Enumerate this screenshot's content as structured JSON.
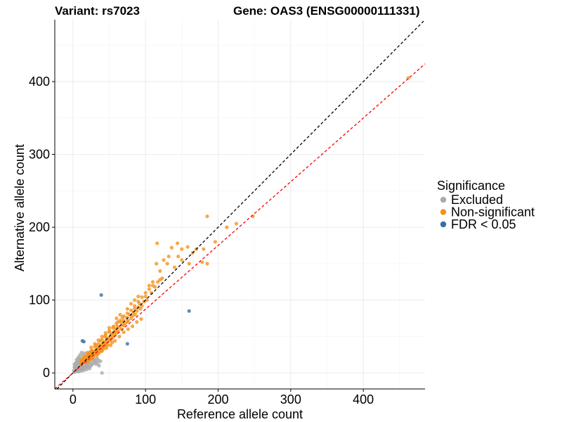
{
  "header": {
    "variant_label": "Variant: rs7023",
    "gene_label": "Gene: OAS3 (ENSG00000111331)"
  },
  "chart_data": {
    "type": "scatter",
    "xlabel": "Reference allele count",
    "ylabel": "Alternative allele count",
    "xlim": [
      -25,
      485
    ],
    "ylim": [
      -22,
      485
    ],
    "xticks": [
      0,
      100,
      200,
      300,
      400
    ],
    "yticks": [
      0,
      100,
      200,
      300,
      400
    ],
    "grid": true,
    "reference_lines": [
      {
        "name": "identity",
        "slope": 1.0,
        "intercept": 0,
        "color": "#000000",
        "style": "dashed"
      },
      {
        "name": "fit",
        "slope": 0.875,
        "intercept": 0,
        "color": "#ff0000",
        "style": "dashed"
      }
    ],
    "legend": {
      "title": "Significance",
      "position": "right",
      "items": [
        {
          "label": "Excluded",
          "color": "#aaaaaa"
        },
        {
          "label": "Non-significant",
          "color": "#f5921e"
        },
        {
          "label": "FDR < 0.05",
          "color": "#3a6ea5"
        }
      ]
    },
    "series": [
      {
        "name": "Excluded",
        "color": "#aaaaaa",
        "points": [
          [
            2,
            1
          ],
          [
            3,
            2
          ],
          [
            4,
            5
          ],
          [
            5,
            3
          ],
          [
            6,
            8
          ],
          [
            7,
            4
          ],
          [
            8,
            10
          ],
          [
            9,
            6
          ],
          [
            10,
            12
          ],
          [
            11,
            7
          ],
          [
            12,
            15
          ],
          [
            13,
            9
          ],
          [
            14,
            11
          ],
          [
            15,
            18
          ],
          [
            16,
            13
          ],
          [
            17,
            20
          ],
          [
            18,
            14
          ],
          [
            19,
            22
          ],
          [
            20,
            16
          ],
          [
            21,
            19
          ],
          [
            22,
            24
          ],
          [
            23,
            17
          ],
          [
            24,
            26
          ],
          [
            25,
            21
          ],
          [
            26,
            23
          ],
          [
            27,
            18
          ],
          [
            28,
            25
          ],
          [
            5,
            12
          ],
          [
            6,
            16
          ],
          [
            7,
            20
          ],
          [
            8,
            22
          ],
          [
            9,
            18
          ],
          [
            3,
            10
          ],
          [
            4,
            14
          ],
          [
            10,
            25
          ],
          [
            12,
            28
          ],
          [
            14,
            24
          ],
          [
            16,
            27
          ],
          [
            18,
            8
          ],
          [
            20,
            10
          ],
          [
            22,
            12
          ],
          [
            24,
            9
          ],
          [
            26,
            11
          ],
          [
            28,
            13
          ],
          [
            30,
            15
          ],
          [
            32,
            12
          ],
          [
            34,
            14
          ],
          [
            36,
            10
          ],
          [
            38,
            16
          ],
          [
            6,
            2
          ],
          [
            8,
            3
          ],
          [
            10,
            4
          ],
          [
            12,
            5
          ],
          [
            14,
            6
          ],
          [
            16,
            4
          ],
          [
            2,
            8
          ],
          [
            3,
            6
          ],
          [
            4,
            9
          ],
          [
            11,
            14
          ],
          [
            13,
            17
          ],
          [
            15,
            21
          ],
          [
            17,
            16
          ],
          [
            19,
            12
          ],
          [
            21,
            15
          ],
          [
            23,
            20
          ],
          [
            25,
            14
          ],
          [
            27,
            22
          ],
          [
            29,
            19
          ],
          [
            31,
            17
          ],
          [
            33,
            20
          ],
          [
            35,
            18
          ],
          [
            40,
            0
          ],
          [
            1,
            3
          ],
          [
            2,
            12
          ],
          [
            5,
            18
          ],
          [
            7,
            14
          ],
          [
            9,
            2
          ],
          [
            11,
            20
          ],
          [
            13,
            3
          ],
          [
            15,
            7
          ],
          [
            17,
            9
          ],
          [
            19,
            5
          ],
          [
            21,
            8
          ],
          [
            23,
            6
          ]
        ]
      },
      {
        "name": "Non-significant",
        "color": "#f5921e",
        "points": [
          [
            462,
            405
          ],
          [
            248,
            215
          ],
          [
            225,
            205
          ],
          [
            212,
            200
          ],
          [
            196,
            180
          ],
          [
            185,
            215
          ],
          [
            180,
            170
          ],
          [
            185,
            150
          ],
          [
            178,
            152
          ],
          [
            170,
            170
          ],
          [
            165,
            165
          ],
          [
            158,
            173
          ],
          [
            150,
            170
          ],
          [
            144,
            178
          ],
          [
            136,
            172
          ],
          [
            132,
            160
          ],
          [
            130,
            150
          ],
          [
            125,
            155
          ],
          [
            120,
            140
          ],
          [
            115,
            150
          ],
          [
            116,
            178
          ],
          [
            108,
            110
          ],
          [
            113,
            118
          ],
          [
            117,
            125
          ],
          [
            120,
            128
          ],
          [
            123,
            130
          ],
          [
            102,
            100
          ],
          [
            100,
            105
          ],
          [
            98,
            98
          ],
          [
            95,
            92
          ],
          [
            93,
            88
          ],
          [
            92,
            95
          ],
          [
            90,
            90
          ],
          [
            88,
            85
          ],
          [
            86,
            80
          ],
          [
            85,
            88
          ],
          [
            83,
            83
          ],
          [
            82,
            78
          ],
          [
            80,
            75
          ],
          [
            78,
            80
          ],
          [
            76,
            72
          ],
          [
            75,
            70
          ],
          [
            74,
            76
          ],
          [
            72,
            68
          ],
          [
            70,
            65
          ],
          [
            70,
            72
          ],
          [
            68,
            66
          ],
          [
            67,
            60
          ],
          [
            66,
            70
          ],
          [
            64,
            63
          ],
          [
            62,
            58
          ],
          [
            61,
            64
          ],
          [
            60,
            55
          ],
          [
            59,
            60
          ],
          [
            58,
            52
          ],
          [
            57,
            57
          ],
          [
            56,
            50
          ],
          [
            55,
            55
          ],
          [
            54,
            48
          ],
          [
            53,
            53
          ],
          [
            52,
            46
          ],
          [
            51,
            50
          ],
          [
            50,
            44
          ],
          [
            49,
            47
          ],
          [
            48,
            45
          ],
          [
            47,
            42
          ],
          [
            46,
            48
          ],
          [
            45,
            40
          ],
          [
            44,
            43
          ],
          [
            43,
            38
          ],
          [
            42,
            41
          ],
          [
            41,
            36
          ],
          [
            40,
            39
          ],
          [
            39,
            35
          ],
          [
            38,
            37
          ],
          [
            37,
            33
          ],
          [
            36,
            36
          ],
          [
            35,
            32
          ],
          [
            34,
            34
          ],
          [
            33,
            30
          ],
          [
            32,
            32
          ],
          [
            31,
            28
          ],
          [
            30,
            30
          ],
          [
            29,
            27
          ],
          [
            28,
            29
          ],
          [
            27,
            25
          ],
          [
            26,
            27
          ],
          [
            25,
            23
          ],
          [
            24,
            25
          ],
          [
            23,
            22
          ],
          [
            22,
            24
          ],
          [
            21,
            20
          ],
          [
            20,
            22
          ],
          [
            19,
            18
          ],
          [
            18,
            20
          ],
          [
            17,
            17
          ],
          [
            16,
            18
          ],
          [
            15,
            15
          ],
          [
            14,
            17
          ],
          [
            13,
            14
          ],
          [
            12,
            16
          ],
          [
            11,
            13
          ],
          [
            10,
            15
          ],
          [
            25,
            30
          ],
          [
            30,
            36
          ],
          [
            35,
            40
          ],
          [
            40,
            46
          ],
          [
            45,
            52
          ],
          [
            50,
            56
          ],
          [
            55,
            62
          ],
          [
            60,
            68
          ],
          [
            65,
            72
          ],
          [
            70,
            78
          ],
          [
            75,
            82
          ],
          [
            80,
            86
          ],
          [
            85,
            92
          ],
          [
            90,
            98
          ],
          [
            95,
            104
          ],
          [
            100,
            110
          ],
          [
            105,
            115
          ],
          [
            110,
            120
          ],
          [
            22,
            18
          ],
          [
            28,
            22
          ],
          [
            34,
            26
          ],
          [
            40,
            30
          ],
          [
            46,
            34
          ],
          [
            52,
            38
          ],
          [
            58,
            44
          ],
          [
            64,
            50
          ],
          [
            70,
            56
          ],
          [
            76,
            60
          ],
          [
            82,
            64
          ],
          [
            88,
            70
          ],
          [
            94,
            74
          ],
          [
            36,
            28
          ],
          [
            42,
            33
          ],
          [
            48,
            38
          ],
          [
            54,
            42
          ],
          [
            26,
            31
          ],
          [
            32,
            38
          ],
          [
            38,
            44
          ],
          [
            44,
            50
          ],
          [
            50,
            58
          ],
          [
            56,
            64
          ],
          [
            62,
            70
          ],
          [
            68,
            76
          ],
          [
            45,
            55
          ],
          [
            50,
            62
          ],
          [
            60,
            75
          ],
          [
            65,
            80
          ],
          [
            75,
            88
          ],
          [
            80,
            95
          ],
          [
            85,
            100
          ],
          [
            90,
            105
          ],
          [
            105,
            120
          ],
          [
            110,
            125
          ],
          [
            140,
            145
          ],
          [
            145,
            160
          ],
          [
            160,
            150
          ],
          [
            150,
            155
          ],
          [
            30,
            25
          ],
          [
            35,
            28
          ],
          [
            40,
            33
          ],
          [
            45,
            37
          ],
          [
            27,
            20
          ],
          [
            33,
            24
          ],
          [
            39,
            30
          ],
          [
            20,
            15
          ],
          [
            24,
            19
          ],
          [
            18,
            22
          ],
          [
            16,
            20
          ],
          [
            14,
            18
          ],
          [
            12,
            18
          ],
          [
            15,
            22
          ],
          [
            19,
            24
          ],
          [
            21,
            26
          ],
          [
            23,
            28
          ],
          [
            20,
            28
          ],
          [
            25,
            35
          ],
          [
            30,
            40
          ],
          [
            35,
            45
          ],
          [
            40,
            50
          ]
        ]
      },
      {
        "name": "FDR < 0.05",
        "color": "#3a6ea5",
        "points": [
          [
            39,
            107
          ],
          [
            13,
            44
          ],
          [
            15,
            43
          ],
          [
            75,
            40
          ],
          [
            160,
            85
          ]
        ]
      }
    ]
  }
}
